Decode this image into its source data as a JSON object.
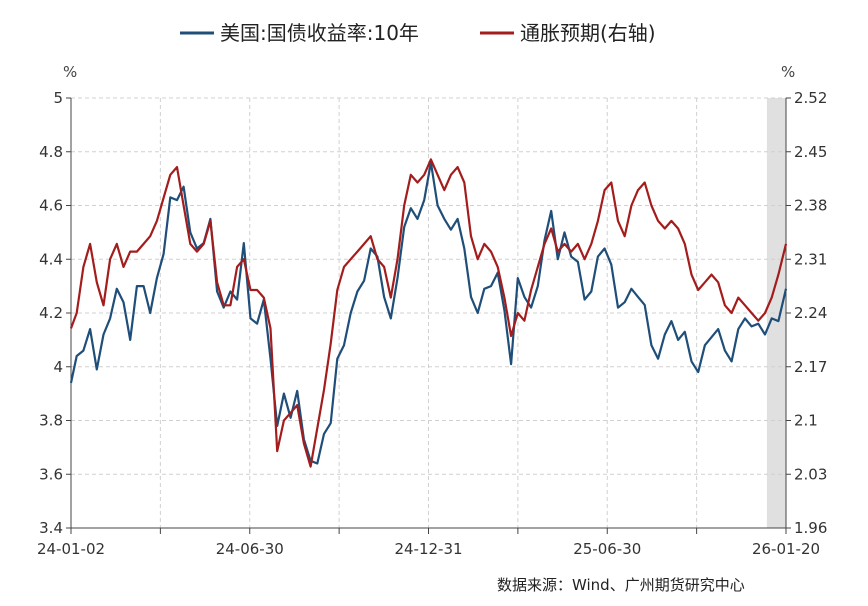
{
  "chart_data": {
    "type": "line",
    "legend": {
      "placement": "top-center"
    },
    "grid": true,
    "left_axis": {
      "unit": "%",
      "ylim": [
        3.4,
        5.0
      ],
      "ticks": [
        "5",
        "4.8",
        "4.6",
        "4.4",
        "4.2",
        "4",
        "3.8",
        "3.6",
        "3.4"
      ]
    },
    "right_axis": {
      "unit": "%",
      "ylim": [
        1.96,
        2.52
      ],
      "ticks": [
        "2.52",
        "2.45",
        "2.38",
        "2.31",
        "2.24",
        "2.17",
        "2.1",
        "2.03",
        "1.96"
      ]
    },
    "x_axis": {
      "range": [
        "2024-01-02",
        "2026-01-20"
      ],
      "tick_labels": [
        "24-01-02",
        "24-06-30",
        "24-12-31",
        "25-06-30",
        "26-01-20"
      ]
    },
    "shaded_region": {
      "from": "2025-12-31",
      "to": "2026-01-20",
      "color": "#e0e0e0"
    },
    "source": "数据来源：Wind、广州期货研究中心",
    "series": [
      {
        "name": "美国:国债收益率:10年",
        "axis": "left",
        "color": "#1f4e79",
        "points": [
          [
            "2024-01-02",
            3.94
          ],
          [
            "2024-01-08",
            4.04
          ],
          [
            "2024-01-15",
            4.06
          ],
          [
            "2024-01-22",
            4.14
          ],
          [
            "2024-01-29",
            3.99
          ],
          [
            "2024-02-05",
            4.12
          ],
          [
            "2024-02-12",
            4.18
          ],
          [
            "2024-02-19",
            4.29
          ],
          [
            "2024-02-26",
            4.24
          ],
          [
            "2024-03-04",
            4.1
          ],
          [
            "2024-03-11",
            4.3
          ],
          [
            "2024-03-18",
            4.3
          ],
          [
            "2024-03-25",
            4.2
          ],
          [
            "2024-04-01",
            4.33
          ],
          [
            "2024-04-08",
            4.42
          ],
          [
            "2024-04-15",
            4.63
          ],
          [
            "2024-04-22",
            4.62
          ],
          [
            "2024-04-29",
            4.67
          ],
          [
            "2024-05-06",
            4.5
          ],
          [
            "2024-05-13",
            4.44
          ],
          [
            "2024-05-20",
            4.46
          ],
          [
            "2024-05-27",
            4.55
          ],
          [
            "2024-06-03",
            4.28
          ],
          [
            "2024-06-10",
            4.22
          ],
          [
            "2024-06-17",
            4.28
          ],
          [
            "2024-06-24",
            4.25
          ],
          [
            "2024-07-01",
            4.46
          ],
          [
            "2024-07-08",
            4.18
          ],
          [
            "2024-07-15",
            4.16
          ],
          [
            "2024-07-22",
            4.25
          ],
          [
            "2024-07-29",
            4.03
          ],
          [
            "2024-08-05",
            3.78
          ],
          [
            "2024-08-12",
            3.9
          ],
          [
            "2024-08-19",
            3.81
          ],
          [
            "2024-08-26",
            3.91
          ],
          [
            "2024-09-02",
            3.73
          ],
          [
            "2024-09-09",
            3.65
          ],
          [
            "2024-09-16",
            3.64
          ],
          [
            "2024-09-23",
            3.75
          ],
          [
            "2024-09-30",
            3.79
          ],
          [
            "2024-10-07",
            4.03
          ],
          [
            "2024-10-14",
            4.08
          ],
          [
            "2024-10-21",
            4.2
          ],
          [
            "2024-10-28",
            4.28
          ],
          [
            "2024-11-04",
            4.32
          ],
          [
            "2024-11-11",
            4.44
          ],
          [
            "2024-11-18",
            4.41
          ],
          [
            "2024-11-25",
            4.26
          ],
          [
            "2024-12-02",
            4.18
          ],
          [
            "2024-12-09",
            4.33
          ],
          [
            "2024-12-16",
            4.52
          ],
          [
            "2024-12-23",
            4.59
          ],
          [
            "2024-12-30",
            4.55
          ],
          [
            "2025-01-06",
            4.62
          ],
          [
            "2025-01-13",
            4.76
          ],
          [
            "2025-01-20",
            4.6
          ],
          [
            "2025-01-27",
            4.55
          ],
          [
            "2025-02-03",
            4.51
          ],
          [
            "2025-02-10",
            4.55
          ],
          [
            "2025-02-17",
            4.44
          ],
          [
            "2025-02-24",
            4.26
          ],
          [
            "2025-03-03",
            4.2
          ],
          [
            "2025-03-10",
            4.29
          ],
          [
            "2025-03-17",
            4.3
          ],
          [
            "2025-03-24",
            4.35
          ],
          [
            "2025-03-31",
            4.21
          ],
          [
            "2025-04-07",
            4.01
          ],
          [
            "2025-04-14",
            4.33
          ],
          [
            "2025-04-21",
            4.26
          ],
          [
            "2025-04-28",
            4.22
          ],
          [
            "2025-05-05",
            4.3
          ],
          [
            "2025-05-12",
            4.47
          ],
          [
            "2025-05-19",
            4.58
          ],
          [
            "2025-05-26",
            4.4
          ],
          [
            "2025-06-02",
            4.5
          ],
          [
            "2025-06-09",
            4.41
          ],
          [
            "2025-06-16",
            4.39
          ],
          [
            "2025-06-23",
            4.25
          ],
          [
            "2025-06-30",
            4.28
          ],
          [
            "2025-07-07",
            4.41
          ],
          [
            "2025-07-14",
            4.44
          ],
          [
            "2025-07-21",
            4.38
          ],
          [
            "2025-07-28",
            4.22
          ],
          [
            "2025-08-04",
            4.24
          ],
          [
            "2025-08-11",
            4.29
          ],
          [
            "2025-08-18",
            4.26
          ],
          [
            "2025-08-25",
            4.23
          ],
          [
            "2025-09-01",
            4.08
          ],
          [
            "2025-09-08",
            4.03
          ],
          [
            "2025-09-15",
            4.12
          ],
          [
            "2025-09-22",
            4.17
          ],
          [
            "2025-09-29",
            4.1
          ],
          [
            "2025-10-06",
            4.13
          ],
          [
            "2025-10-13",
            4.02
          ],
          [
            "2025-10-20",
            3.98
          ],
          [
            "2025-10-27",
            4.08
          ],
          [
            "2025-11-03",
            4.11
          ],
          [
            "2025-11-10",
            4.14
          ],
          [
            "2025-11-17",
            4.06
          ],
          [
            "2025-11-24",
            4.02
          ],
          [
            "2025-12-01",
            4.14
          ],
          [
            "2025-12-08",
            4.18
          ],
          [
            "2025-12-15",
            4.15
          ],
          [
            "2025-12-22",
            4.16
          ],
          [
            "2025-12-29",
            4.12
          ],
          [
            "2026-01-05",
            4.18
          ],
          [
            "2026-01-12",
            4.17
          ],
          [
            "2026-01-20",
            4.29
          ]
        ]
      },
      {
        "name": "通胀预期(右轴)",
        "axis": "right",
        "color": "#a31d1d",
        "points": [
          [
            "2024-01-02",
            2.22
          ],
          [
            "2024-01-08",
            2.24
          ],
          [
            "2024-01-15",
            2.3
          ],
          [
            "2024-01-22",
            2.33
          ],
          [
            "2024-01-29",
            2.28
          ],
          [
            "2024-02-05",
            2.25
          ],
          [
            "2024-02-12",
            2.31
          ],
          [
            "2024-02-19",
            2.33
          ],
          [
            "2024-02-26",
            2.3
          ],
          [
            "2024-03-04",
            2.32
          ],
          [
            "2024-03-11",
            2.32
          ],
          [
            "2024-03-18",
            2.33
          ],
          [
            "2024-03-25",
            2.34
          ],
          [
            "2024-04-01",
            2.36
          ],
          [
            "2024-04-08",
            2.39
          ],
          [
            "2024-04-15",
            2.42
          ],
          [
            "2024-04-22",
            2.43
          ],
          [
            "2024-04-29",
            2.38
          ],
          [
            "2024-05-06",
            2.33
          ],
          [
            "2024-05-13",
            2.32
          ],
          [
            "2024-05-20",
            2.33
          ],
          [
            "2024-05-27",
            2.36
          ],
          [
            "2024-06-03",
            2.28
          ],
          [
            "2024-06-10",
            2.25
          ],
          [
            "2024-06-17",
            2.25
          ],
          [
            "2024-06-24",
            2.3
          ],
          [
            "2024-07-01",
            2.31
          ],
          [
            "2024-07-08",
            2.27
          ],
          [
            "2024-07-15",
            2.27
          ],
          [
            "2024-07-22",
            2.26
          ],
          [
            "2024-07-29",
            2.22
          ],
          [
            "2024-08-05",
            2.06
          ],
          [
            "2024-08-12",
            2.1
          ],
          [
            "2024-08-19",
            2.11
          ],
          [
            "2024-08-26",
            2.12
          ],
          [
            "2024-09-02",
            2.07
          ],
          [
            "2024-09-09",
            2.04
          ],
          [
            "2024-09-16",
            2.09
          ],
          [
            "2024-09-23",
            2.14
          ],
          [
            "2024-09-30",
            2.2
          ],
          [
            "2024-10-07",
            2.27
          ],
          [
            "2024-10-14",
            2.3
          ],
          [
            "2024-10-21",
            2.31
          ],
          [
            "2024-10-28",
            2.32
          ],
          [
            "2024-11-04",
            2.33
          ],
          [
            "2024-11-11",
            2.34
          ],
          [
            "2024-11-18",
            2.31
          ],
          [
            "2024-11-25",
            2.3
          ],
          [
            "2024-12-02",
            2.26
          ],
          [
            "2024-12-09",
            2.31
          ],
          [
            "2024-12-16",
            2.38
          ],
          [
            "2024-12-23",
            2.42
          ],
          [
            "2024-12-30",
            2.41
          ],
          [
            "2025-01-06",
            2.42
          ],
          [
            "2025-01-13",
            2.44
          ],
          [
            "2025-01-20",
            2.42
          ],
          [
            "2025-01-27",
            2.4
          ],
          [
            "2025-02-03",
            2.42
          ],
          [
            "2025-02-10",
            2.43
          ],
          [
            "2025-02-17",
            2.41
          ],
          [
            "2025-02-24",
            2.34
          ],
          [
            "2025-03-03",
            2.31
          ],
          [
            "2025-03-10",
            2.33
          ],
          [
            "2025-03-17",
            2.32
          ],
          [
            "2025-03-24",
            2.3
          ],
          [
            "2025-03-31",
            2.26
          ],
          [
            "2025-04-07",
            2.21
          ],
          [
            "2025-04-14",
            2.24
          ],
          [
            "2025-04-21",
            2.23
          ],
          [
            "2025-04-28",
            2.27
          ],
          [
            "2025-05-05",
            2.3
          ],
          [
            "2025-05-12",
            2.33
          ],
          [
            "2025-05-19",
            2.35
          ],
          [
            "2025-05-26",
            2.32
          ],
          [
            "2025-06-02",
            2.33
          ],
          [
            "2025-06-09",
            2.32
          ],
          [
            "2025-06-16",
            2.33
          ],
          [
            "2025-06-23",
            2.31
          ],
          [
            "2025-06-30",
            2.33
          ],
          [
            "2025-07-07",
            2.36
          ],
          [
            "2025-07-14",
            2.4
          ],
          [
            "2025-07-21",
            2.41
          ],
          [
            "2025-07-28",
            2.36
          ],
          [
            "2025-08-04",
            2.34
          ],
          [
            "2025-08-11",
            2.38
          ],
          [
            "2025-08-18",
            2.4
          ],
          [
            "2025-08-25",
            2.41
          ],
          [
            "2025-09-01",
            2.38
          ],
          [
            "2025-09-08",
            2.36
          ],
          [
            "2025-09-15",
            2.35
          ],
          [
            "2025-09-22",
            2.36
          ],
          [
            "2025-09-29",
            2.35
          ],
          [
            "2025-10-06",
            2.33
          ],
          [
            "2025-10-13",
            2.29
          ],
          [
            "2025-10-20",
            2.27
          ],
          [
            "2025-10-27",
            2.28
          ],
          [
            "2025-11-03",
            2.29
          ],
          [
            "2025-11-10",
            2.28
          ],
          [
            "2025-11-17",
            2.25
          ],
          [
            "2025-11-24",
            2.24
          ],
          [
            "2025-12-01",
            2.26
          ],
          [
            "2025-12-08",
            2.25
          ],
          [
            "2025-12-15",
            2.24
          ],
          [
            "2025-12-22",
            2.23
          ],
          [
            "2025-12-29",
            2.24
          ],
          [
            "2026-01-05",
            2.26
          ],
          [
            "2026-01-12",
            2.29
          ],
          [
            "2026-01-20",
            2.33
          ]
        ]
      }
    ]
  }
}
